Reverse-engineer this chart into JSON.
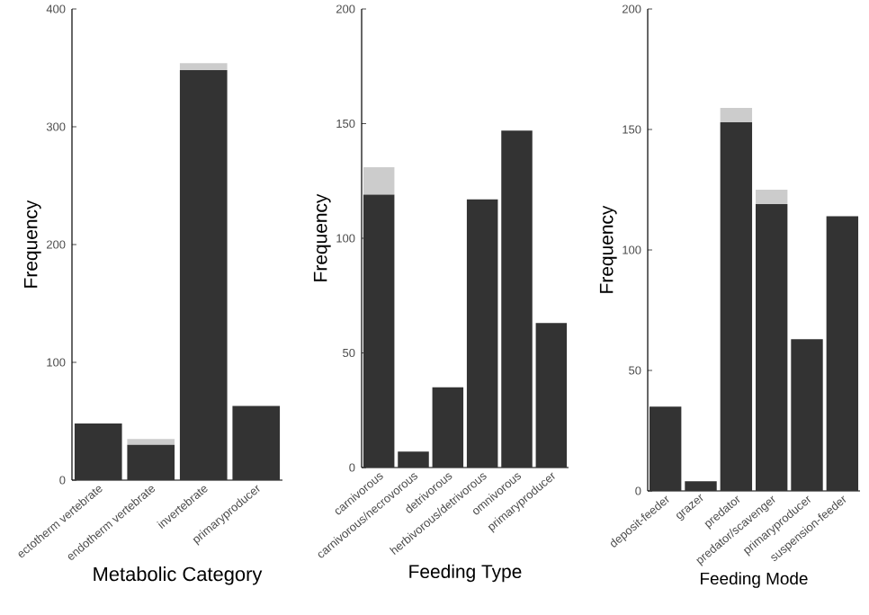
{
  "chart_data": [
    {
      "type": "bar",
      "stacked": true,
      "xlabel": "Metabolic Category",
      "ylabel": "Frequency",
      "categories": [
        "ectotherm vertebrate",
        "endotherm vertebrate",
        "invertebrate",
        "primaryproducer"
      ],
      "series": [
        {
          "color": "#333333",
          "values": [
            48,
            30,
            348,
            63
          ]
        },
        {
          "color": "#cccccc",
          "values": [
            null,
            5,
            6,
            null
          ]
        }
      ],
      "ylim": [
        0,
        400
      ],
      "yticks": [
        0,
        100,
        200,
        300,
        400
      ]
    },
    {
      "type": "bar",
      "stacked": true,
      "xlabel": "Feeding Type",
      "ylabel": "Frequency",
      "categories": [
        "carnivorous",
        "carnivorous/necrovorous",
        "detrivorous",
        "herbivorous/detrivorous",
        "omnivorous",
        "primaryproducer"
      ],
      "series": [
        {
          "color": "#333333",
          "values": [
            119,
            7,
            35,
            117,
            147,
            63
          ]
        },
        {
          "color": "#cccccc",
          "values": [
            12,
            null,
            null,
            null,
            null,
            null
          ]
        }
      ],
      "ylim": [
        0,
        200
      ],
      "yticks": [
        0,
        50,
        100,
        150,
        200
      ]
    },
    {
      "type": "bar",
      "stacked": true,
      "xlabel": "Feeding Mode",
      "ylabel": "Frequency",
      "categories": [
        "deposit-feeder",
        "grazer",
        "predator",
        "predator/scavenger",
        "primaryproducer",
        "suspension-feeder"
      ],
      "series": [
        {
          "color": "#333333",
          "values": [
            35,
            4,
            153,
            119,
            63,
            114
          ]
        },
        {
          "color": "#cccccc",
          "values": [
            null,
            null,
            6,
            6,
            null,
            null
          ]
        }
      ],
      "ylim": [
        0,
        200
      ],
      "yticks": [
        0,
        50,
        100,
        150,
        200
      ]
    }
  ]
}
